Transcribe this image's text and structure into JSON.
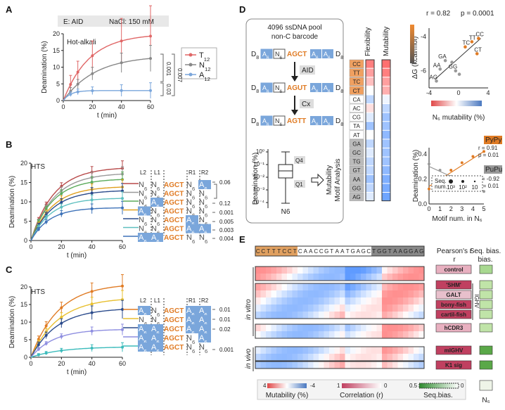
{
  "panels": {
    "A": "A",
    "B": "B",
    "C": "C",
    "D": "D",
    "E": "E"
  },
  "panelA": {
    "header_enzyme": "E: AID",
    "header_salt": "NaCl: 150 mM",
    "inset": "Hot-alkali",
    "ylabel": "Deamination (%)",
    "xlabel": "t (min)",
    "legend": [
      {
        "base": "T",
        "sub": "12",
        "color": "#e06666"
      },
      {
        "base": "N",
        "sub": "12",
        "color": "#888888"
      },
      {
        "base": "A",
        "sub": "12",
        "color": "#7aa6db"
      }
    ],
    "pvals": [
      "0.001",
      "0.03",
      "0.007"
    ],
    "yticks": [
      "0",
      "5",
      "10",
      "15",
      "20"
    ],
    "xticks": [
      "0",
      "20",
      "40",
      "60"
    ]
  },
  "panelB": {
    "inset": "HTS",
    "ylabel": "Deamination (%)",
    "xlabel": "t (min)",
    "yticks": [
      "0",
      "5",
      "10",
      "15",
      "20"
    ],
    "xticks": [
      "0",
      "20",
      "40",
      "60"
    ],
    "region_labels": [
      "L2",
      "L1",
      "R1",
      "R2"
    ],
    "core": "AGCT",
    "N": "N",
    "A": "A",
    "sub": "6",
    "pvals": [
      "0.06",
      "0.12",
      "0.001",
      "0.005",
      "0.003",
      "0.004"
    ]
  },
  "panelC": {
    "inset": "HTS",
    "ylabel": "Deamination (%)",
    "xlabel": "t (min)",
    "yticks": [
      "0",
      "5",
      "10",
      "15",
      "20"
    ],
    "xticks": [
      "0",
      "20",
      "40",
      "60"
    ],
    "region_labels": [
      "L2",
      "L1",
      "R1",
      "R2"
    ],
    "pvals": [
      "0.01",
      "0.01",
      "0.02",
      "0.001"
    ]
  },
  "panelD": {
    "pool_title": "4096 ssDNA pool",
    "pool_sub": "non-C barcode",
    "seq1": "AGCT",
    "seq2": "AGUT",
    "seq3": "AGTT",
    "D8": "D",
    "D8sub": "8",
    "step1": "AID",
    "step2": "Cx",
    "box_ylabel": "Deamination (%)",
    "box_xlabel": "N6",
    "Q4": "Q4",
    "Q1": "Q1",
    "box_ticks": [
      "10⁰",
      "10⁻¹",
      "10⁻²",
      "10⁻³",
      "10⁻⁴"
    ],
    "arrow_label1": "Mutability",
    "arrow_label2": "Motif Analysis",
    "motif_header_flex": "Flexibility",
    "motif_header_mut": "Mutability",
    "dinucs": [
      "CC",
      "TT",
      "TC",
      "CT",
      "CA",
      "AC",
      "CG",
      "TA",
      "AT",
      "GA",
      "GC",
      "TG",
      "GT",
      "AA",
      "GG",
      "AG"
    ],
    "scatter1": {
      "r": "r = 0.82",
      "p": "p = 0.0001",
      "ylabel": "ΔG (kcal/mol)",
      "xlabel": "N₆ mutability (%)",
      "yticks": [
        "-4",
        "-6"
      ],
      "xticks": [
        "-4",
        "0",
        "4"
      ],
      "points": [
        {
          "x": 2.7,
          "y": -4.1,
          "label": "CC"
        },
        {
          "x": 1.8,
          "y": -4.3,
          "label": "TT"
        },
        {
          "x": 0.9,
          "y": -4.6,
          "label": "TC"
        },
        {
          "x": 2.5,
          "y": -5.0,
          "label": "CT"
        },
        {
          "x": -1.8,
          "y": -5.4,
          "label": "GA"
        },
        {
          "x": -2.5,
          "y": -5.9,
          "label": "AA"
        },
        {
          "x": -0.4,
          "y": -6.0,
          "label": "GG"
        },
        {
          "x": -3.0,
          "y": -6.6,
          "label": "AG"
        },
        {
          "x": -0.9,
          "y": -5.5,
          "label": ""
        },
        {
          "x": 0.1,
          "y": -6.2,
          "label": ""
        }
      ]
    },
    "scatter2": {
      "ylabel": "Deamination (%)",
      "xlabel": "Motif num. in N₆",
      "pypy": "PyPy",
      "pupu": "PuPu",
      "r1": "r = 0.91",
      "p1": "p = 0.01",
      "r2": "r = -0.92",
      "p2": "p = 0.01",
      "xticks": [
        "0",
        "1",
        "2",
        "3",
        "4",
        "5"
      ],
      "yticks": [
        "0.0",
        "0.2",
        "0.4"
      ],
      "legend_title": "Seq. num.",
      "legend_items": [
        "10³",
        "10²",
        "10"
      ],
      "pypy_pts": [
        [
          0,
          0.12
        ],
        [
          1,
          0.2
        ],
        [
          2,
          0.27
        ],
        [
          3,
          0.33
        ],
        [
          4,
          0.38
        ],
        [
          5,
          0.42
        ]
      ],
      "pupu_pts": [
        [
          0,
          0.32
        ],
        [
          1,
          0.27
        ],
        [
          2,
          0.22
        ],
        [
          3,
          0.18
        ],
        [
          4,
          0.15
        ],
        [
          5,
          0.1
        ]
      ]
    }
  },
  "panelE": {
    "sequence": "CCTTTCCTCAACCGTAATGAGCTGGTAAGGAG",
    "col1": "Pearson's r",
    "col2": "Seq. bias.",
    "invitro": "in vitro",
    "invivo": "in vivo",
    "ighv": "IGHV",
    "rows": [
      "control",
      "'SHM'",
      "GALT",
      "bony-fish",
      "cartil-fish",
      "hCDR3",
      "mIGHV",
      "K1 sig"
    ],
    "legend_mut": "Mutability (%)",
    "legend_corr": "Correlation (r)",
    "legend_seq": "Seq.bias.",
    "mut_lo": "4",
    "mut_hi": "-4",
    "corr_lo": "1",
    "corr_hi": "0",
    "seq_lo": "0.5",
    "seq_hi": "0",
    "n6": "N₆"
  }
}
